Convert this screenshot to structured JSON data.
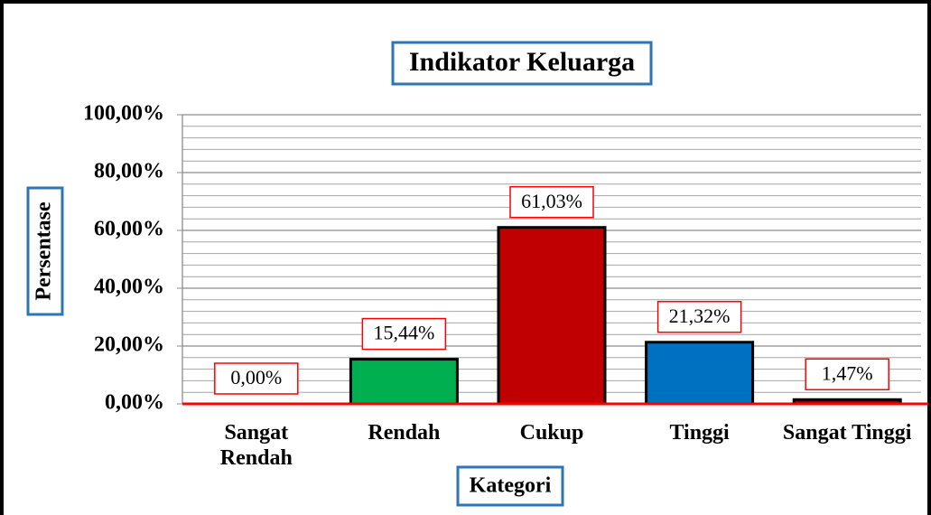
{
  "chart_data": {
    "type": "bar",
    "title": "Indikator Keluarga",
    "x_label": "Kategori",
    "y_label": "Persentase",
    "categories": [
      "Sangat Rendah",
      "Rendah",
      "Cukup",
      "Tinggi",
      "Sangat Tinggi"
    ],
    "values": [
      0,
      15.44,
      61.03,
      21.32,
      1.47
    ],
    "value_labels": [
      "0,00%",
      "15,44%",
      "61,03%",
      "21,32%",
      "1,47%"
    ],
    "colors": [
      "#c00000",
      "#00b050",
      "#c00000",
      "#0070c0",
      "#8b0000"
    ],
    "ylim": [
      0,
      100
    ],
    "yticks": [
      {
        "value": 0,
        "label": "0,00%"
      },
      {
        "value": 20,
        "label": "20,00%"
      },
      {
        "value": 40,
        "label": "40,00%"
      },
      {
        "value": 60,
        "label": "60,00%"
      },
      {
        "value": 80,
        "label": "80,00%"
      },
      {
        "value": 100,
        "label": "100,00%"
      }
    ],
    "minor_yticks": [
      4,
      8,
      12,
      16,
      24,
      28,
      32,
      36,
      44,
      48,
      52,
      56,
      64,
      68,
      72,
      76,
      84,
      88,
      92,
      96
    ],
    "grid": true
  }
}
